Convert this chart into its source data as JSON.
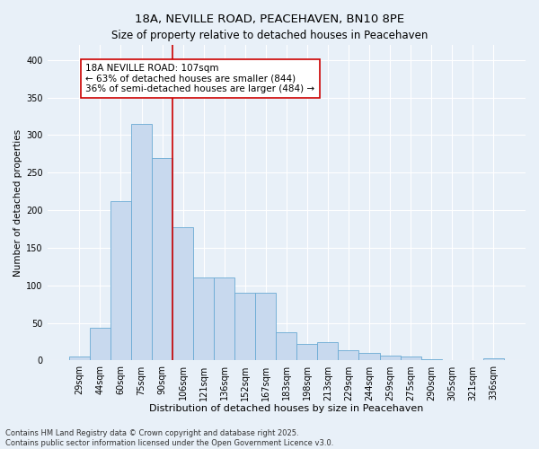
{
  "title": "18A, NEVILLE ROAD, PEACEHAVEN, BN10 8PE",
  "subtitle": "Size of property relative to detached houses in Peacehaven",
  "xlabel": "Distribution of detached houses by size in Peacehaven",
  "ylabel": "Number of detached properties",
  "categories": [
    "29sqm",
    "44sqm",
    "60sqm",
    "75sqm",
    "90sqm",
    "106sqm",
    "121sqm",
    "136sqm",
    "152sqm",
    "167sqm",
    "183sqm",
    "198sqm",
    "213sqm",
    "229sqm",
    "244sqm",
    "259sqm",
    "275sqm",
    "290sqm",
    "305sqm",
    "321sqm",
    "336sqm"
  ],
  "values": [
    5,
    43,
    212,
    315,
    270,
    178,
    110,
    110,
    90,
    90,
    38,
    22,
    25,
    14,
    10,
    6,
    5,
    2,
    1,
    1,
    3
  ],
  "bar_color": "#c8d9ee",
  "bar_edge_color": "#6aaad4",
  "vline_color": "#cc0000",
  "annotation_text": "18A NEVILLE ROAD: 107sqm\n← 63% of detached houses are smaller (844)\n36% of semi-detached houses are larger (484) →",
  "annotation_box_color": "#ffffff",
  "annotation_box_edge": "#cc0000",
  "annotation_fontsize": 7.5,
  "title_fontsize": 9.5,
  "subtitle_fontsize": 8.5,
  "xlabel_fontsize": 8,
  "ylabel_fontsize": 7.5,
  "tick_fontsize": 7,
  "footer_text": "Contains HM Land Registry data © Crown copyright and database right 2025.\nContains public sector information licensed under the Open Government Licence v3.0.",
  "footer_fontsize": 6,
  "background_color": "#e8f0f8",
  "plot_bg_color": "#e8f0f8",
  "grid_color": "#ffffff",
  "ylim": [
    0,
    420
  ]
}
